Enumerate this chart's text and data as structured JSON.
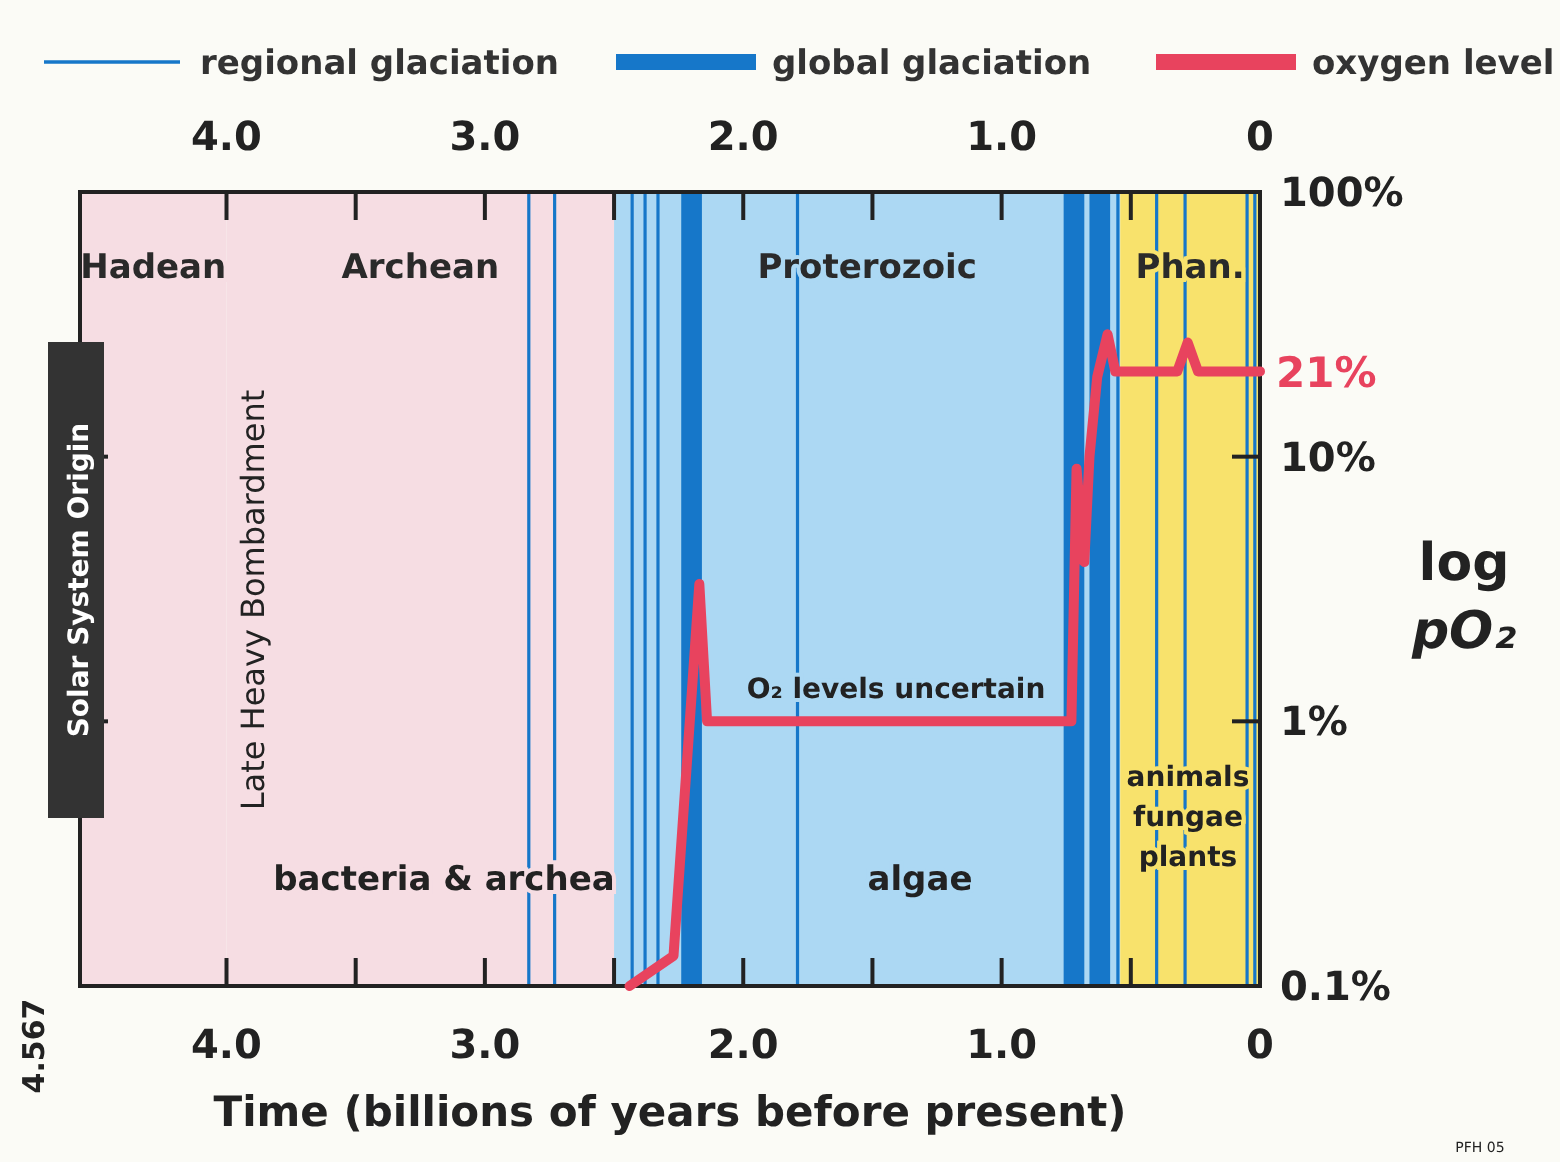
{
  "chart_data": {
    "type": "line",
    "xlabel": "Time (billions of years before present)",
    "ylabel": "log pO₂",
    "log": "y",
    "legend": "top",
    "xlim": [
      4.567,
      0
    ],
    "xticks": [
      {
        "value": 4,
        "label": "4.0"
      },
      {
        "value": 3.5,
        "label": null
      },
      {
        "value": 3,
        "label": "3.0"
      },
      {
        "value": 2.5,
        "label": null
      },
      {
        "value": 2,
        "label": "2.0"
      },
      {
        "value": 1.5,
        "label": null
      },
      {
        "value": 1,
        "label": "1.0"
      },
      {
        "value": 0.5,
        "label": null
      },
      0
    ],
    "x2lim": [
      4.567,
      0
    ],
    "x2ticks": [
      {
        "value": 4,
        "label": "4.0"
      },
      {
        "value": 3.5,
        "label": null
      },
      {
        "value": 3,
        "label": "3.0"
      },
      {
        "value": 2.5,
        "label": null
      },
      {
        "value": 2,
        "label": "2.0"
      },
      {
        "value": 1.5,
        "label": null
      },
      {
        "value": 1,
        "label": "1.0"
      },
      {
        "value": 0.5,
        "label": null
      },
      0
    ],
    "ylim": [
      0.1,
      100
    ],
    "yticks": [
      {
        "value": 0.1,
        "label": "0.1%"
      },
      {
        "value": 1,
        "label": "1%"
      },
      {
        "value": 10,
        "label": "10%"
      },
      {
        "value": 100,
        "label": "100%"
      }
    ],
    "series": [
      {
        "name": "oxygen level",
        "color": "#e8435e",
        "x": [
          2.44,
          2.27,
          2.17,
          2.14,
          0.73,
          0.71,
          0.68,
          0.66,
          0.63,
          0.59,
          0.56,
          0.32,
          0.28,
          0.24,
          0
        ],
        "values": [
          0.1,
          0.13,
          3.3,
          1,
          1,
          9,
          4,
          10,
          20,
          29,
          21,
          21,
          27,
          21,
          21
        ]
      }
    ],
    "bands": [
      {
        "axis": "x",
        "from": 4.567,
        "to": 4,
        "label": "Hadean",
        "color": "#f6dde3"
      },
      {
        "axis": "x",
        "from": 4,
        "to": 2.5,
        "label": "Archean",
        "color": "#f6dde3"
      },
      {
        "axis": "x",
        "from": 2.5,
        "to": 0.541,
        "label": "Proterozoic",
        "color": "#acd8f3"
      },
      {
        "axis": "x",
        "from": 0.541,
        "to": 0,
        "label": "Phan.",
        "color": "#f8e26c"
      },
      {
        "axis": "x",
        "from": 2.24,
        "to": 2.16,
        "label": "global glaciation",
        "color": "#1677c9"
      },
      {
        "axis": "x",
        "from": 0.76,
        "to": 0.68,
        "color": "#1677c9"
      },
      {
        "axis": "x",
        "from": 0.66,
        "to": 0.58,
        "color": "#1677c9"
      }
    ],
    "ref_lines": [
      {
        "axis": "x",
        "value": 2.83,
        "label": "regional glaciation",
        "color": "#1677c9"
      },
      {
        "axis": "x",
        "value": 2.73,
        "color": "#1677c9"
      },
      {
        "axis": "x",
        "value": 2.43,
        "color": "#1677c9"
      },
      {
        "axis": "x",
        "value": 2.38,
        "color": "#1677c9"
      },
      {
        "axis": "x",
        "value": 2.33,
        "color": "#1677c9"
      },
      {
        "axis": "x",
        "value": 1.79,
        "color": "#1677c9"
      },
      {
        "axis": "x",
        "value": 0.55,
        "color": "#1677c9"
      },
      {
        "axis": "x",
        "value": 0.4,
        "color": "#1677c9"
      },
      {
        "axis": "x",
        "value": 0.29,
        "color": "#1677c9"
      },
      {
        "axis": "x",
        "value": 0.05,
        "color": "#1677c9"
      },
      {
        "axis": "x",
        "value": 0.02,
        "color": "#1677c9"
      }
    ],
    "annotations": [
      "Solar System Origin",
      "Late Heavy Bombardment",
      "bacteria & archea",
      "O₂ levels uncertain",
      "algae",
      "animals fungae plants",
      {
        "text": "21%",
        "x": 0,
        "y": 21
      },
      "PFH 05",
      "4.567"
    ]
  }
}
